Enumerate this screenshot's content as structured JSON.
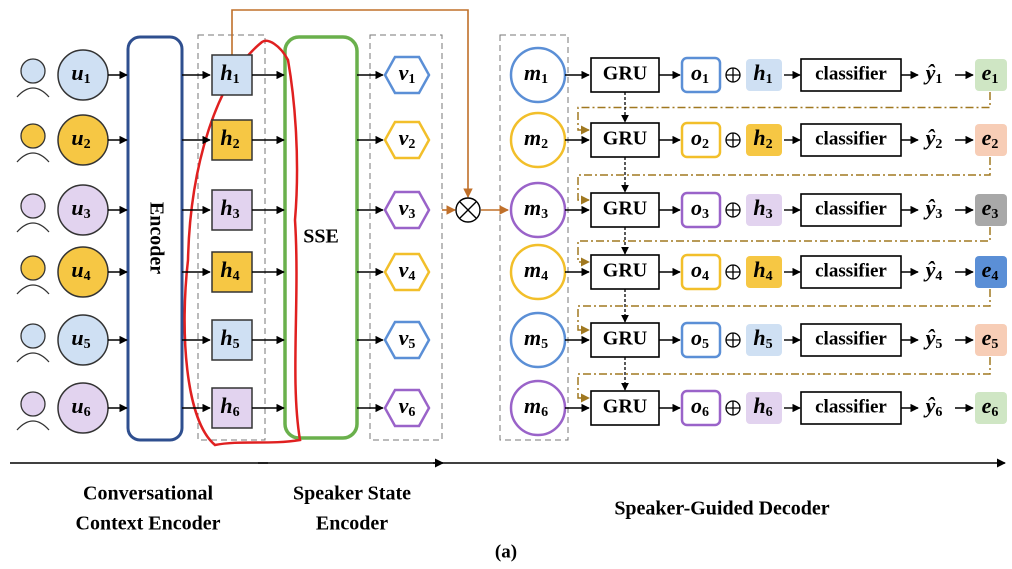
{
  "blocks": {
    "encoder": "Encoder",
    "sse": "SSE"
  },
  "rows": [
    {
      "color": "#5b8fd6",
      "fill": "#cfe0f3",
      "e_color": "#cfe6c4",
      "u": [
        "u",
        "1"
      ],
      "h": [
        "h",
        "1"
      ],
      "v": [
        "v",
        "1"
      ],
      "m": [
        "m",
        "1"
      ],
      "gru": "GRU",
      "o": [
        "o",
        "1"
      ],
      "h_out": [
        "h",
        "1"
      ],
      "classifier": "classifier",
      "y": [
        "ŷ",
        "1"
      ],
      "e": [
        "e",
        "1"
      ]
    },
    {
      "color": "#f2bf2a",
      "fill": "#f6c744",
      "e_color": "#f7cdb6",
      "u": [
        "u",
        "2"
      ],
      "h": [
        "h",
        "2"
      ],
      "v": [
        "v",
        "2"
      ],
      "m": [
        "m",
        "2"
      ],
      "gru": "GRU",
      "o": [
        "o",
        "2"
      ],
      "h_out": [
        "h",
        "2"
      ],
      "classifier": "classifier",
      "y": [
        "ŷ",
        "2"
      ],
      "e": [
        "e",
        "2"
      ]
    },
    {
      "color": "#9a63c9",
      "fill": "#e2d3ef",
      "e_color": "#a8a8a8",
      "u": [
        "u",
        "3"
      ],
      "h": [
        "h",
        "3"
      ],
      "v": [
        "v",
        "3"
      ],
      "m": [
        "m",
        "3"
      ],
      "gru": "GRU",
      "o": [
        "o",
        "3"
      ],
      "h_out": [
        "h",
        "3"
      ],
      "classifier": "classifier",
      "y": [
        "ŷ",
        "3"
      ],
      "e": [
        "e",
        "3"
      ]
    },
    {
      "color": "#f2bf2a",
      "fill": "#f6c744",
      "e_color": "#5b8fd6",
      "u": [
        "u",
        "4"
      ],
      "h": [
        "h",
        "4"
      ],
      "v": [
        "v",
        "4"
      ],
      "m": [
        "m",
        "4"
      ],
      "gru": "GRU",
      "o": [
        "o",
        "4"
      ],
      "h_out": [
        "h",
        "4"
      ],
      "classifier": "classifier",
      "y": [
        "ŷ",
        "4"
      ],
      "e": [
        "e",
        "4"
      ]
    },
    {
      "color": "#5b8fd6",
      "fill": "#cfe0f3",
      "e_color": "#f7cdb6",
      "u": [
        "u",
        "5"
      ],
      "h": [
        "h",
        "5"
      ],
      "v": [
        "v",
        "5"
      ],
      "m": [
        "m",
        "5"
      ],
      "gru": "GRU",
      "o": [
        "o",
        "5"
      ],
      "h_out": [
        "h",
        "5"
      ],
      "classifier": "classifier",
      "y": [
        "ŷ",
        "5"
      ],
      "e": [
        "e",
        "5"
      ]
    },
    {
      "color": "#9a63c9",
      "fill": "#e2d3ef",
      "e_color": "#cfe6c4",
      "u": [
        "u",
        "6"
      ],
      "h": [
        "h",
        "6"
      ],
      "v": [
        "v",
        "6"
      ],
      "m": [
        "m",
        "6"
      ],
      "gru": "GRU",
      "o": [
        "o",
        "6"
      ],
      "h_out": [
        "h",
        "6"
      ],
      "classifier": "classifier",
      "y": [
        "ŷ",
        "6"
      ],
      "e": [
        "e",
        "6"
      ]
    }
  ],
  "sections": [
    {
      "lines": [
        "Conversational",
        "Context Encoder"
      ]
    },
    {
      "lines": [
        "Speaker State",
        "Encoder"
      ]
    },
    {
      "lines": [
        "Speaker-Guided Decoder"
      ]
    }
  ],
  "caption": "(a)"
}
